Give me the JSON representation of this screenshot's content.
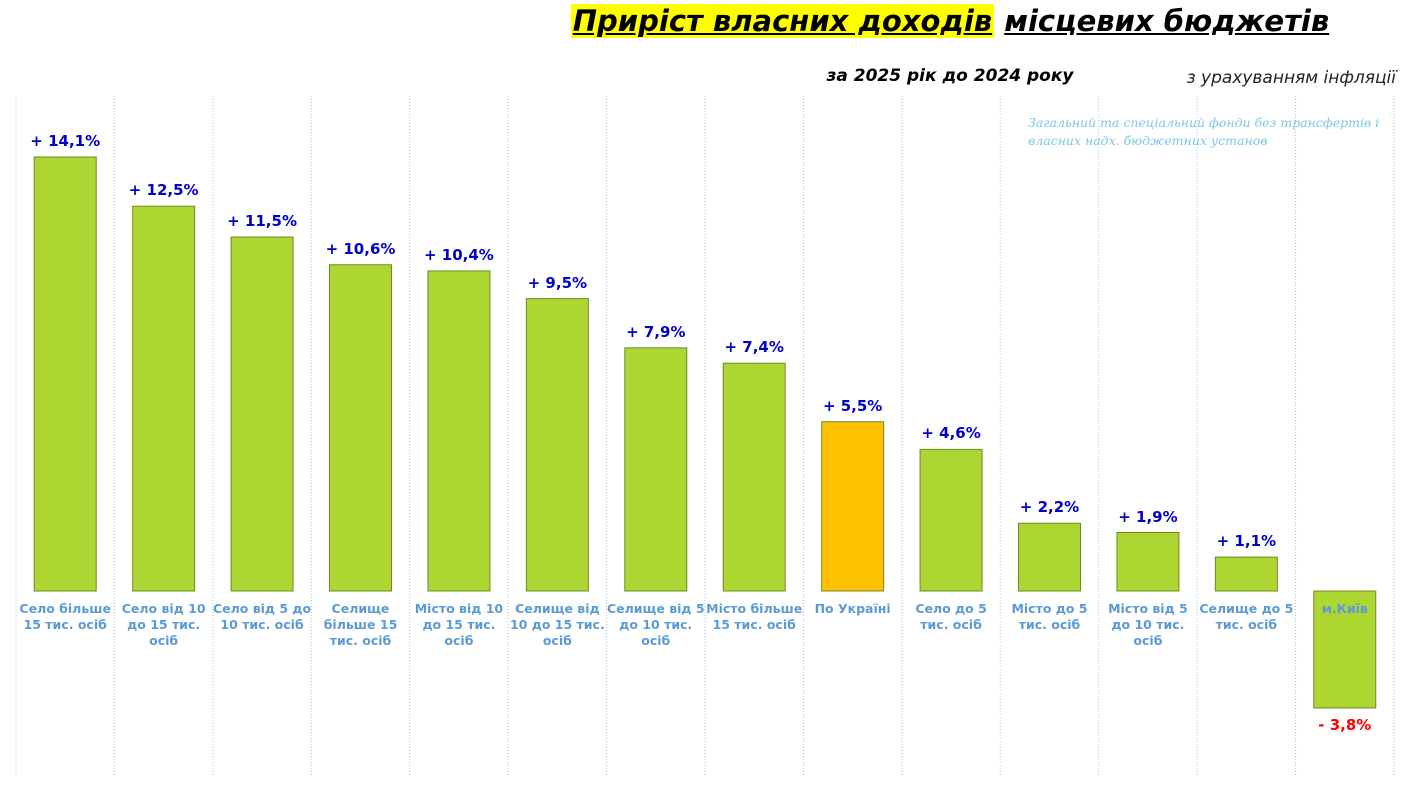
{
  "chart_data": {
    "type": "bar",
    "title": [
      "Приріст власних доходів",
      "місцевих бюджетів"
    ],
    "subtitle": "за 2025 рік до 2024 року",
    "note": "з урахуванням інфляції",
    "annotation": "Загальний та спеціальний фонди без трансфертів і власних надх. бюджетних установ",
    "categories": [
      "Село більше 15 тис. осіб",
      "Село від 10 до 15 тис. осіб",
      "Село від 5 до 10 тис. осіб",
      "Селище більше 15 тис. осіб",
      "Місто від 10 до 15 тис. осіб",
      "Селище від 10 до 15 тис. осіб",
      "Селище від 5 до 10 тис. осіб",
      "Місто більше 15 тис. осіб",
      "По Україні",
      "Село до 5 тис. осіб",
      "Місто до 5 тис. осіб",
      "Місто від 5 до 10 тис. осіб",
      "Селище до 5 тис. осіб",
      "м.Київ"
    ],
    "values": [
      14.1,
      12.5,
      11.5,
      10.6,
      10.4,
      9.5,
      7.9,
      7.4,
      5.5,
      4.6,
      2.2,
      1.9,
      1.1,
      -3.8
    ],
    "value_labels": [
      "+ 14,1%",
      "+ 12,5%",
      "+ 11,5%",
      "+ 10,6%",
      "+ 10,4%",
      "+ 9,5%",
      "+ 7,9%",
      "+ 7,4%",
      "+ 5,5%",
      "+ 4,6%",
      "+ 2,2%",
      "+ 1,9%",
      "+ 1,1%",
      "- 3,8%"
    ],
    "colors": [
      "#add633",
      "#add633",
      "#add633",
      "#add633",
      "#add633",
      "#add633",
      "#add633",
      "#add633",
      "#ffc000",
      "#add633",
      "#add633",
      "#add633",
      "#add633",
      "#add633"
    ],
    "grid": true
  }
}
